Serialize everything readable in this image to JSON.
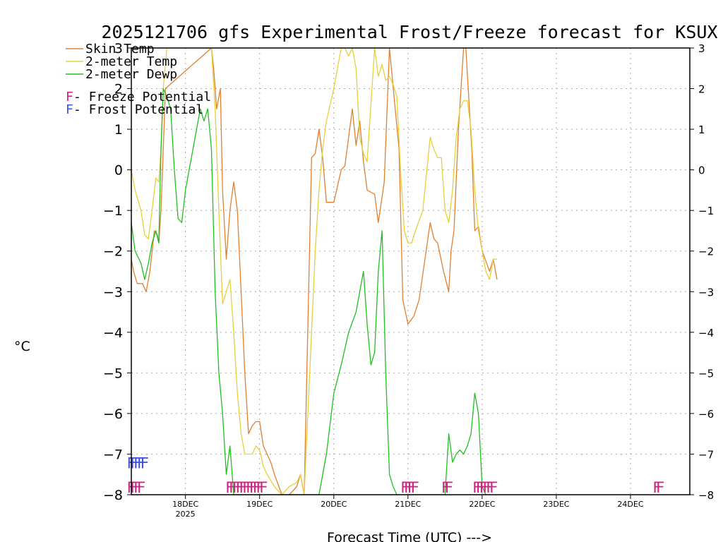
{
  "chart_data": {
    "type": "line",
    "title": "2025121706 gfs Experimental Frost/Freeze forecast for KSUX",
    "ylabel": "°C",
    "xlabel": "Forecast Time (UTC) --->",
    "ylim": [
      -8,
      3
    ],
    "xlim": [
      -0.73,
      6.8
    ],
    "y_ticks": [
      "3",
      "2",
      "1",
      "0",
      "−1",
      "−2",
      "−3",
      "−4",
      "−5",
      "−6",
      "−7",
      "−8"
    ],
    "y_tick_values": [
      3,
      2,
      1,
      0,
      -1,
      -2,
      -3,
      -4,
      -5,
      -6,
      -7,
      -8
    ],
    "x_ticks": [
      {
        "label": "18DEC",
        "sublabel": "2025",
        "value": 0
      },
      {
        "label": "19DEC",
        "value": 1
      },
      {
        "label": "20DEC",
        "value": 2
      },
      {
        "label": "21DEC",
        "value": 3
      },
      {
        "label": "22DEC",
        "value": 4
      },
      {
        "label": "23DEC",
        "value": 5
      },
      {
        "label": "24DEC",
        "value": 6
      }
    ],
    "grid": true,
    "legend": {
      "position": "top-left",
      "items": [
        {
          "label": "Skin Temp",
          "color": "#e08030"
        },
        {
          "label": "2-meter Temp",
          "color": "#e6d03c"
        },
        {
          "label": "2-meter Dewp",
          "color": "#20c020"
        }
      ],
      "flags": [
        {
          "letter": "F",
          "label": " - Freeze Potential",
          "color": "#d02080"
        },
        {
          "letter": "F",
          "label": " - Frost Potential",
          "color": "#4050e0"
        }
      ]
    },
    "series": [
      {
        "name": "Skin Temp",
        "color": "#e08030",
        "x": [
          -0.73,
          -0.7,
          -0.65,
          -0.58,
          -0.53,
          -0.48,
          -0.42,
          -0.38,
          -0.36,
          -0.33,
          -0.3,
          -0.27,
          0.35,
          0.38,
          0.42,
          0.47,
          0.5,
          0.55,
          0.6,
          0.65,
          0.7,
          0.75,
          0.8,
          0.85,
          0.9,
          0.95,
          1.0,
          1.05,
          1.1,
          1.15,
          1.2,
          1.3,
          1.4,
          1.5,
          1.55,
          1.6,
          1.7,
          1.75,
          1.8,
          1.85,
          1.9,
          2.0,
          2.1,
          2.15,
          2.25,
          2.3,
          2.35,
          2.4,
          2.45,
          2.55,
          2.6,
          2.68,
          2.75,
          2.88,
          2.93,
          3.0,
          3.08,
          3.15,
          3.3,
          3.35,
          3.4,
          3.48,
          3.55,
          3.58,
          3.62,
          3.68,
          3.75,
          3.78,
          3.86,
          3.9,
          3.95,
          4.0,
          4.1,
          4.15,
          4.2
        ],
        "y": [
          -2.2,
          -2.5,
          -2.8,
          -2.8,
          -3.0,
          -2.5,
          -1.5,
          -1.6,
          -1.8,
          -1.0,
          0.5,
          2.0,
          3.0,
          2.5,
          1.5,
          2.0,
          -0.5,
          -2.2,
          -1.0,
          -0.3,
          -1.0,
          -3.0,
          -5.0,
          -6.5,
          -6.3,
          -6.2,
          -6.2,
          -6.8,
          -7.0,
          -7.2,
          -7.5,
          -8.0,
          -8.0,
          -7.8,
          -7.5,
          -8.0,
          0.3,
          0.4,
          1.0,
          0.3,
          -0.8,
          -0.8,
          0.0,
          0.1,
          1.5,
          0.6,
          1.2,
          0.2,
          -0.5,
          -0.6,
          -1.3,
          -0.3,
          3.0,
          0.5,
          -3.2,
          -3.8,
          -3.6,
          -3.2,
          -1.3,
          -1.7,
          -1.8,
          -2.5,
          -3.0,
          -2.0,
          -1.5,
          1.0,
          3.0,
          3.0,
          0.5,
          -1.5,
          -1.4,
          -2.0,
          -2.5,
          -2.2,
          -2.7
        ]
      },
      {
        "name": "2-meter Temp",
        "color": "#e6d03c",
        "x": [
          -0.73,
          -0.68,
          -0.6,
          -0.55,
          -0.5,
          -0.45,
          -0.4,
          -0.36,
          -0.33,
          -0.3,
          -0.25,
          0.35,
          0.4,
          0.45,
          0.5,
          0.55,
          0.6,
          0.65,
          0.7,
          0.75,
          0.8,
          0.9,
          0.95,
          1.0,
          1.05,
          1.1,
          1.2,
          1.3,
          1.4,
          1.5,
          1.55,
          1.6,
          1.65,
          1.7,
          1.75,
          1.8,
          1.85,
          1.9,
          1.95,
          2.0,
          2.05,
          2.1,
          2.15,
          2.2,
          2.25,
          2.3,
          2.35,
          2.4,
          2.45,
          2.55,
          2.6,
          2.65,
          2.7,
          2.75,
          2.8,
          2.85,
          2.9,
          2.95,
          3.0,
          3.05,
          3.1,
          3.2,
          3.3,
          3.35,
          3.4,
          3.45,
          3.5,
          3.55,
          3.6,
          3.65,
          3.7,
          3.75,
          3.8,
          3.85,
          3.9,
          3.95,
          4.0,
          4.05,
          4.1,
          4.15,
          4.2
        ],
        "y": [
          0.0,
          -0.5,
          -1.0,
          -1.6,
          -1.7,
          -1.0,
          -0.2,
          -0.3,
          0.5,
          2.0,
          3.0,
          3.0,
          1.5,
          -1.0,
          -3.3,
          -3.0,
          -2.7,
          -4.0,
          -5.5,
          -6.5,
          -7.0,
          -7.0,
          -6.8,
          -6.9,
          -7.3,
          -7.5,
          -7.8,
          -8.0,
          -7.8,
          -7.7,
          -7.5,
          -8.0,
          -6.0,
          -4.0,
          -2.0,
          -0.5,
          0.5,
          1.2,
          1.6,
          2.0,
          2.5,
          3.0,
          3.0,
          2.8,
          3.0,
          2.5,
          0.8,
          0.4,
          0.2,
          3.0,
          2.3,
          2.6,
          2.2,
          2.3,
          2.1,
          1.8,
          0.0,
          -1.5,
          -1.8,
          -1.8,
          -1.5,
          -1.0,
          0.8,
          0.5,
          0.3,
          0.3,
          -1.0,
          -1.3,
          -0.5,
          0.8,
          1.5,
          1.7,
          1.7,
          1.0,
          -0.5,
          -1.5,
          -2.0,
          -2.5,
          -2.7,
          -2.2,
          -2.2
        ]
      },
      {
        "name": "2-meter Dewp",
        "color": "#20c020",
        "x": [
          -0.73,
          -0.68,
          -0.6,
          -0.55,
          -0.5,
          -0.45,
          -0.4,
          -0.36,
          -0.33,
          -0.3,
          -0.25,
          -0.2,
          -0.15,
          -0.1,
          -0.05,
          0.0,
          0.05,
          0.1,
          0.15,
          0.2,
          0.25,
          0.3,
          0.35,
          0.4,
          0.45,
          0.5,
          0.55,
          0.6,
          0.65,
          0.7,
          1.55,
          1.8,
          1.9,
          2.0,
          2.1,
          2.2,
          2.3,
          2.4,
          2.45,
          2.5,
          2.55,
          2.6,
          2.65,
          2.7,
          2.75,
          2.8,
          2.85,
          2.9,
          3.5,
          3.55,
          3.6,
          3.65,
          3.7,
          3.75,
          3.8,
          3.85,
          3.9,
          3.95,
          4.0,
          4.05,
          4.1
        ],
        "y": [
          -1.3,
          -2.0,
          -2.3,
          -2.7,
          -2.3,
          -1.8,
          -1.5,
          -1.8,
          0.5,
          2.0,
          1.8,
          1.5,
          0.0,
          -1.2,
          -1.3,
          -0.5,
          0.0,
          0.5,
          1.0,
          1.5,
          1.2,
          1.5,
          0.5,
          -3.0,
          -5.0,
          -6.0,
          -7.5,
          -6.8,
          -8.0,
          -8.0,
          -8.0,
          -8.0,
          -7.0,
          -5.5,
          -4.8,
          -4.0,
          -3.5,
          -2.5,
          -3.8,
          -4.8,
          -4.5,
          -2.5,
          -1.5,
          -5.0,
          -7.5,
          -7.8,
          -8.0,
          -8.0,
          -8.0,
          -6.5,
          -7.2,
          -7.0,
          -6.9,
          -7.0,
          -6.8,
          -6.5,
          -5.5,
          -6.0,
          -7.8,
          -8.0,
          -8.0
        ]
      }
    ],
    "freeze_flags": [
      {
        "x_start": -0.79,
        "count": 4
      },
      {
        "x_start": 0.54,
        "count": 11
      },
      {
        "x_start": 2.9,
        "count": 4
      },
      {
        "x_start": 3.45,
        "count": 2
      },
      {
        "x_start": 3.87,
        "count": 6
      },
      {
        "x_start": 6.3,
        "count": 2
      }
    ],
    "frost_flags": [
      {
        "x_start": -0.79,
        "count": 5
      }
    ],
    "flag_letter": "F"
  }
}
